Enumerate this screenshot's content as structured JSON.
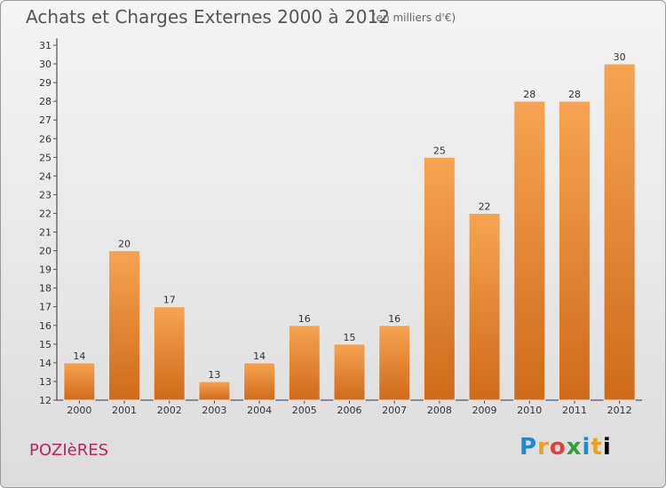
{
  "header": {
    "title": "Achats et Charges Externes 2000 à 2012",
    "unit": "(en milliers d'€)"
  },
  "footer": {
    "commune": "POZIèRES",
    "brand_letters": [
      "P",
      "r",
      "o",
      "x",
      "i",
      "t",
      "i"
    ]
  },
  "colors": {
    "bar_top": "#f6a451",
    "bar_bottom": "#d06a18",
    "axis": "#333333",
    "grid_tick": "#555555"
  },
  "chart_data": {
    "type": "bar",
    "title": "Achats et Charges Externes 2000 à 2012",
    "subtitle": "(en milliers d'€)",
    "categories": [
      "2000",
      "2001",
      "2002",
      "2003",
      "2004",
      "2005",
      "2006",
      "2007",
      "2008",
      "2009",
      "2010",
      "2011",
      "2012"
    ],
    "values": [
      14,
      20,
      17,
      13,
      14,
      16,
      15,
      16,
      25,
      22,
      28,
      28,
      30
    ],
    "data_labels": [
      "14",
      "20",
      "17",
      "13",
      "14",
      "16",
      "15",
      "16",
      "25",
      "22",
      "28",
      "28",
      "30"
    ],
    "ylim": [
      12,
      31
    ],
    "yticks": [
      "12",
      "13",
      "14",
      "15",
      "16",
      "17",
      "18",
      "19",
      "20",
      "21",
      "22",
      "23",
      "24",
      "25",
      "26",
      "27",
      "28",
      "29",
      "30",
      "31"
    ],
    "xlabel": "",
    "ylabel": "",
    "grid": false,
    "legend": "none"
  }
}
